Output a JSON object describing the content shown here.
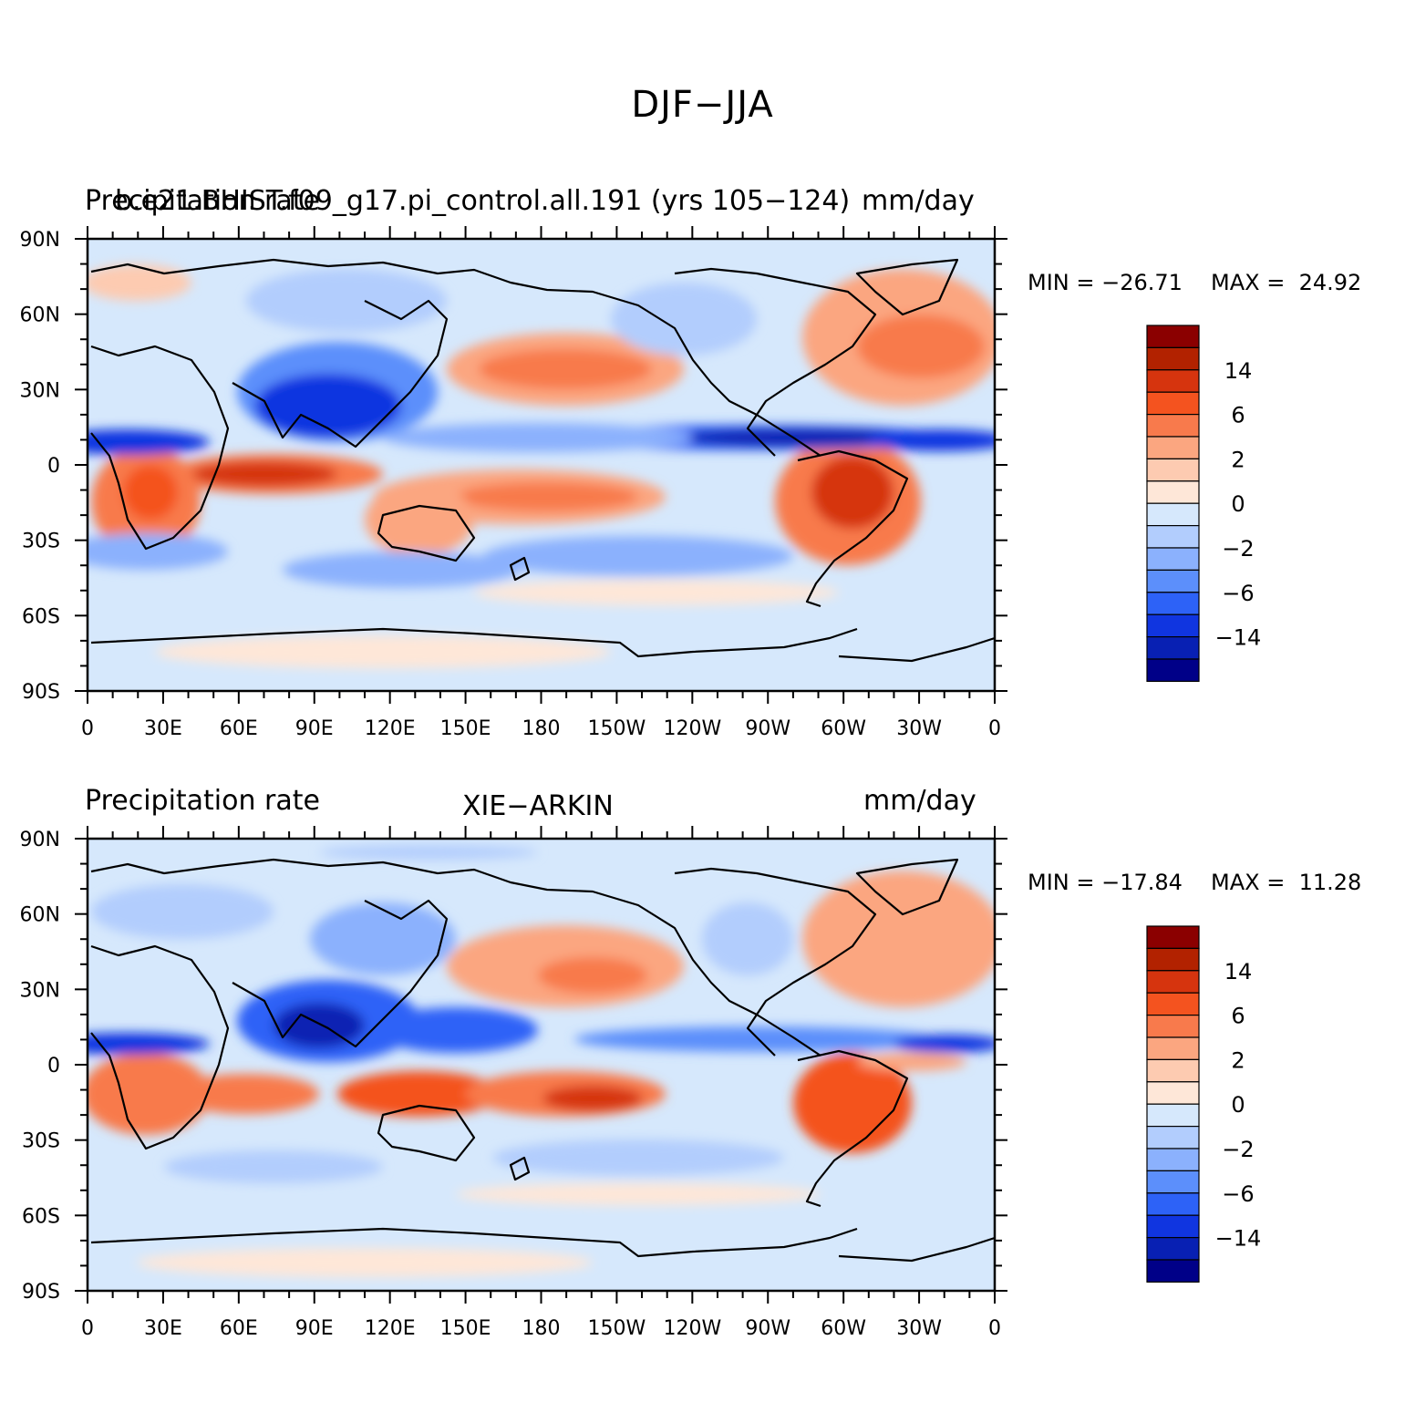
{
  "main_title": "DJF−JJA",
  "panels": [
    {
      "left_label": "Precipitation rate",
      "center_label": "b.e21.BHIST.f09_g17.pi_control.all.191 (yrs 105−124)",
      "right_label": "mm/day",
      "min_text": "MIN = −26.71",
      "max_text": "MAX =  24.92"
    },
    {
      "left_label": "Precipitation rate",
      "center_label": "XIE−ARKIN",
      "right_label": "mm/day",
      "min_text": "MIN = −17.84",
      "max_text": "MAX =  11.28"
    }
  ],
  "lat_ticks": [
    "90N",
    "60N",
    "30N",
    "0",
    "30S",
    "60S",
    "90S"
  ],
  "lon_ticks": [
    "0",
    "30E",
    "60E",
    "90E",
    "120E",
    "150E",
    "180",
    "150W",
    "120W",
    "90W",
    "60W",
    "30W",
    "0"
  ],
  "colorbar": {
    "colors": [
      "#8b0000",
      "#b22200",
      "#d6340e",
      "#f4531f",
      "#f87a4c",
      "#fba680",
      "#fdcbb1",
      "#fee7d8",
      "#d6e8fc",
      "#b2cdfd",
      "#8bb1fd",
      "#5c8ffb",
      "#2d62f7",
      "#1035e0",
      "#0820b3",
      "#000088"
    ],
    "labels": [
      "14",
      "6",
      "2",
      "0",
      "−2",
      "−6",
      "−14"
    ]
  },
  "chart_data": {
    "type": "contour map",
    "units": "mm/day",
    "season_difference": "DJF−JJA",
    "contour_levels": [
      -14,
      -10,
      -6,
      -4,
      -2,
      -1,
      0,
      1,
      2,
      4,
      6,
      10,
      14
    ],
    "panels": [
      {
        "dataset": "b.e21.BHIST.f09_g17.pi_control.all.191 (yrs 105−124)",
        "min": -26.71,
        "max": 24.92
      },
      {
        "dataset": "XIE−ARKIN",
        "min": -17.84,
        "max": 11.28
      }
    ]
  }
}
